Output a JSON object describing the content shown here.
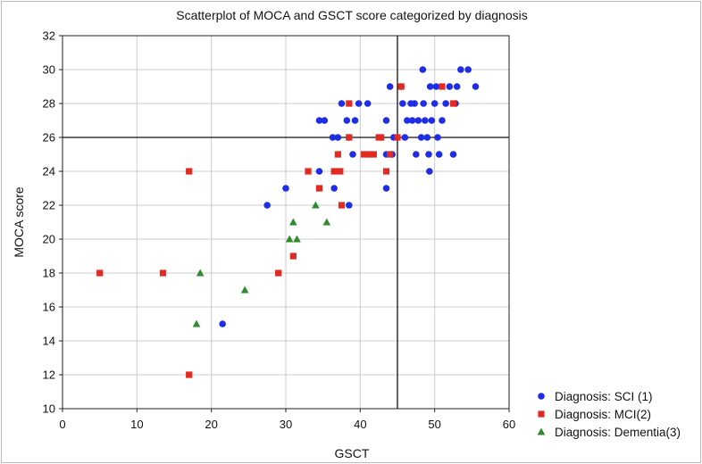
{
  "chart_data": {
    "type": "scatter",
    "title": "Scatterplot of MOCA and GSCT score categorized by diagnosis",
    "xlabel": "GSCT",
    "ylabel": "MOCA score",
    "xlim": [
      0,
      60
    ],
    "ylim": [
      10,
      32
    ],
    "xticks": [
      0,
      10,
      20,
      30,
      40,
      50,
      60
    ],
    "yticks": [
      10,
      12,
      14,
      16,
      18,
      20,
      22,
      24,
      26,
      28,
      30,
      32
    ],
    "grid": true,
    "legend_position": "bottom-right",
    "reference_lines": {
      "x": 45,
      "y": 26
    },
    "series": [
      {
        "name": "Diagnosis: SCI (1)",
        "marker": "circle",
        "color": "#1f2ee6",
        "points": [
          [
            21.5,
            15
          ],
          [
            27.5,
            22
          ],
          [
            30,
            23
          ],
          [
            34.5,
            24
          ],
          [
            36.5,
            23
          ],
          [
            38.5,
            22
          ],
          [
            34.5,
            27
          ],
          [
            35.2,
            27
          ],
          [
            36.3,
            26
          ],
          [
            37,
            26
          ],
          [
            37.5,
            28
          ],
          [
            38.2,
            27
          ],
          [
            38.5,
            26
          ],
          [
            39,
            25
          ],
          [
            39.3,
            27
          ],
          [
            39.8,
            28
          ],
          [
            41,
            28
          ],
          [
            43.5,
            27
          ],
          [
            43.5,
            23
          ],
          [
            43.5,
            25
          ],
          [
            44.2,
            25
          ],
          [
            44.5,
            26
          ],
          [
            44,
            29
          ],
          [
            44.3,
            25
          ],
          [
            45.5,
            29
          ],
          [
            45.7,
            28
          ],
          [
            46,
            26
          ],
          [
            46.3,
            27
          ],
          [
            46.8,
            28
          ],
          [
            47,
            27
          ],
          [
            47.3,
            28
          ],
          [
            47.8,
            27
          ],
          [
            47.5,
            25
          ],
          [
            48.2,
            26
          ],
          [
            48.5,
            28
          ],
          [
            48.4,
            30
          ],
          [
            49,
            26
          ],
          [
            49.2,
            25
          ],
          [
            49.4,
            29
          ],
          [
            48.7,
            27
          ],
          [
            49.3,
            24
          ],
          [
            49.6,
            27
          ],
          [
            50,
            28
          ],
          [
            50.2,
            29
          ],
          [
            50.4,
            26
          ],
          [
            50.6,
            25
          ],
          [
            51,
            27
          ],
          [
            51.5,
            28
          ],
          [
            52,
            29
          ],
          [
            52.5,
            25
          ],
          [
            53,
            29
          ],
          [
            53.5,
            30
          ],
          [
            54.5,
            30
          ],
          [
            55.5,
            29
          ],
          [
            52.8,
            28
          ]
        ]
      },
      {
        "name": "Diagnosis: MCI(2)",
        "marker": "square",
        "color": "#e12a22",
        "points": [
          [
            5,
            18
          ],
          [
            13.5,
            18
          ],
          [
            17,
            24
          ],
          [
            17,
            12
          ],
          [
            29,
            18
          ],
          [
            31,
            19
          ],
          [
            33,
            24
          ],
          [
            34.5,
            23
          ],
          [
            36.5,
            24
          ],
          [
            37,
            25
          ],
          [
            37.3,
            24
          ],
          [
            37.5,
            22
          ],
          [
            38.5,
            28
          ],
          [
            38.5,
            26
          ],
          [
            40.5,
            25
          ],
          [
            41.2,
            25
          ],
          [
            41.8,
            25
          ],
          [
            42.5,
            26
          ],
          [
            42.8,
            26
          ],
          [
            43.5,
            24
          ],
          [
            44,
            25
          ],
          [
            45,
            26
          ],
          [
            45.5,
            29
          ],
          [
            51,
            29
          ],
          [
            52.5,
            28
          ]
        ]
      },
      {
        "name": "Diagnosis: Dementia(3)",
        "marker": "triangle",
        "color": "#2e8b2e",
        "points": [
          [
            18,
            15
          ],
          [
            18.5,
            18
          ],
          [
            24.5,
            17
          ],
          [
            30.5,
            20
          ],
          [
            31,
            21
          ],
          [
            31.5,
            20
          ],
          [
            34,
            22
          ],
          [
            35.5,
            21
          ]
        ]
      }
    ]
  }
}
